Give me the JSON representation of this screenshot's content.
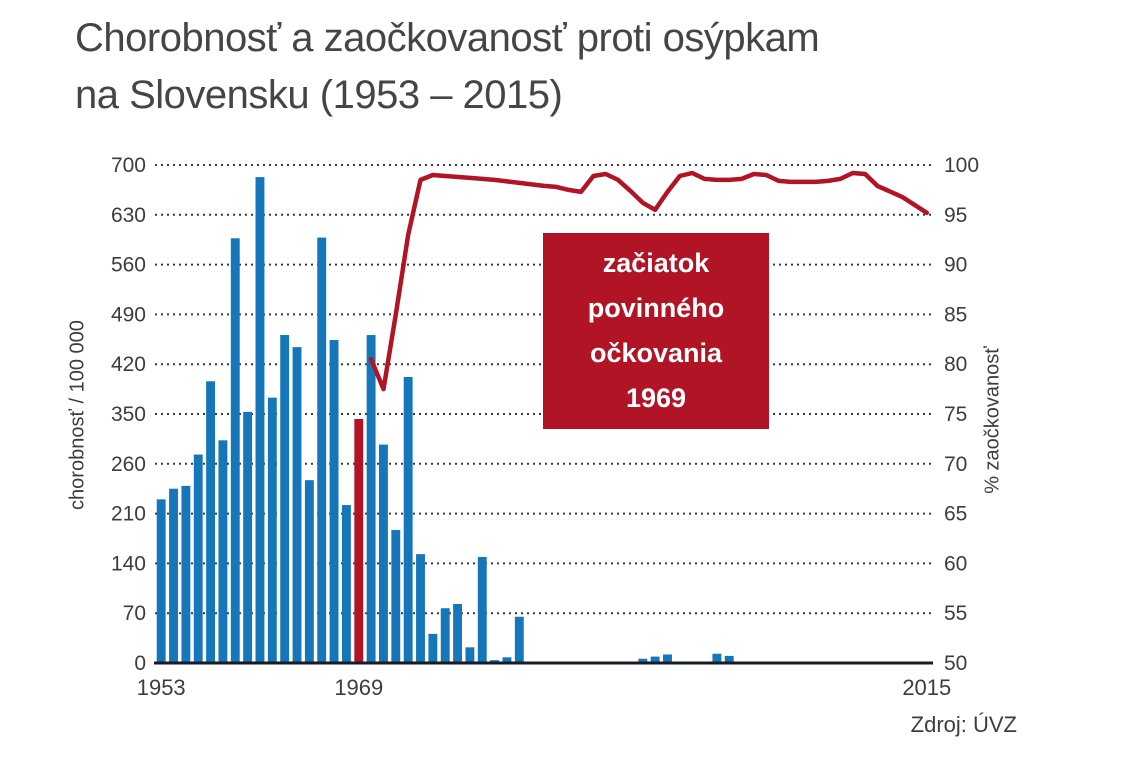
{
  "title": {
    "line1": "Chorobnosť a zaočkovanosť proti osýpkam",
    "line2": "na Slovensku (1953 – 2015)"
  },
  "annotation": {
    "line1": "začiatok",
    "line2": "povinného",
    "line3": "očkovania",
    "line4": "1969"
  },
  "source": "Zdroj: ÚVZ",
  "left_axis": {
    "title": "chorobnosť / 100 000",
    "tick_labels": [
      "700",
      "630",
      "560",
      "490",
      "420",
      "350",
      "260",
      "210",
      "140",
      "70",
      "0"
    ]
  },
  "right_axis": {
    "title": "% zaočkovanosť",
    "tick_labels": [
      "100",
      "95",
      "90",
      "85",
      "80",
      "75",
      "70",
      "65",
      "60",
      "55",
      "50"
    ]
  },
  "x_axis": {
    "labels": [
      {
        "year": 1953,
        "text": "1953"
      },
      {
        "year": 1969,
        "text": "1969"
      },
      {
        "year": 2015,
        "text": "2015"
      }
    ]
  },
  "colors": {
    "bar_blue": "#1576b9",
    "bar_red": "#b01425",
    "line_red": "#b01425",
    "annotation_bg": "#b01425",
    "text": "#3d3d3d",
    "axis": "#1a1a24",
    "grid": "#3c3c3c"
  },
  "chart_data": {
    "type": "bar+line",
    "title": "Chorobnosť a zaočkovanosť proti osýpkam na Slovensku (1953 – 2015)",
    "x_range": [
      1953,
      2015
    ],
    "grid": "horizontal-dotted",
    "annotation_text": "začiatok povinného očkovania 1969",
    "bars": {
      "name": "chorobnosť / 100 000",
      "axis": "left",
      "ylim": [
        0,
        700
      ],
      "highlight_year": 1969,
      "years": [
        1953,
        1954,
        1955,
        1956,
        1957,
        1958,
        1959,
        1960,
        1961,
        1962,
        1963,
        1964,
        1965,
        1966,
        1967,
        1968,
        1969,
        1970,
        1971,
        1972,
        1973,
        1974,
        1975,
        1976,
        1977,
        1978,
        1979,
        1980,
        1981,
        1982,
        1983,
        1984,
        1985,
        1986,
        1987,
        1988,
        1989,
        1990,
        1991,
        1992,
        1993,
        1994,
        1995,
        1996,
        1997,
        1998,
        1999,
        2000,
        2001,
        2002,
        2003,
        2004,
        2005,
        2006,
        2007,
        2008,
        2009,
        2010,
        2011,
        2012,
        2013,
        2014,
        2015
      ],
      "values": [
        230,
        245,
        249,
        293,
        396,
        313,
        597,
        353,
        683,
        373,
        461,
        444,
        257,
        598,
        454,
        222,
        343,
        461,
        307,
        187,
        402,
        153,
        41,
        77,
        83,
        22,
        149,
        4,
        8,
        65,
        0,
        0,
        0,
        0,
        0,
        0,
        0,
        0,
        0,
        6,
        9,
        12,
        0,
        0,
        0,
        13,
        10,
        0,
        0,
        0,
        0,
        0,
        0,
        0,
        0,
        0,
        0,
        0,
        0,
        0,
        0,
        0,
        0
      ]
    },
    "line": {
      "name": "% zaočkovanosť",
      "axis": "right",
      "ylim": [
        50,
        100
      ],
      "points": [
        [
          1970,
          80.5
        ],
        [
          1971,
          77.5
        ],
        [
          1972,
          85
        ],
        [
          1973,
          93
        ],
        [
          1974,
          98.5
        ],
        [
          1975,
          99.0
        ],
        [
          1976,
          98.9
        ],
        [
          1978,
          98.7
        ],
        [
          1980,
          98.5
        ],
        [
          1982,
          98.2
        ],
        [
          1984,
          97.9
        ],
        [
          1985,
          97.8
        ],
        [
          1986,
          97.5
        ],
        [
          1987,
          97.3
        ],
        [
          1988,
          98.9
        ],
        [
          1989,
          99.1
        ],
        [
          1990,
          98.5
        ],
        [
          1991,
          97.4
        ],
        [
          1992,
          96.2
        ],
        [
          1993,
          95.5
        ],
        [
          1994,
          97.3
        ],
        [
          1995,
          98.9
        ],
        [
          1996,
          99.2
        ],
        [
          1997,
          98.6
        ],
        [
          1998,
          98.5
        ],
        [
          1999,
          98.5
        ],
        [
          2000,
          98.6
        ],
        [
          2001,
          99.1
        ],
        [
          2002,
          99.0
        ],
        [
          2003,
          98.4
        ],
        [
          2004,
          98.3
        ],
        [
          2006,
          98.3
        ],
        [
          2007,
          98.4
        ],
        [
          2008,
          98.6
        ],
        [
          2009,
          99.2
        ],
        [
          2010,
          99.1
        ],
        [
          2011,
          97.9
        ],
        [
          2013,
          96.8
        ],
        [
          2015,
          95.2
        ]
      ]
    }
  }
}
